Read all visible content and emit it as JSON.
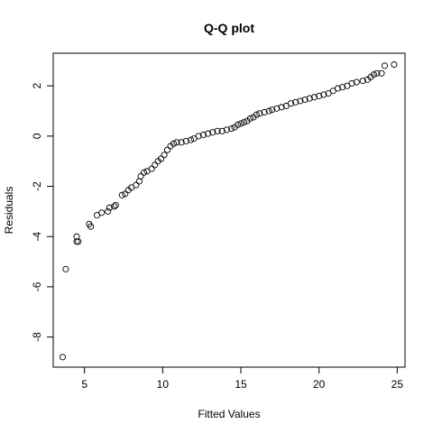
{
  "chart_data": {
    "type": "scatter",
    "title": "Q-Q plot",
    "xlabel": "Fitted Values",
    "ylabel": "Residuals",
    "xlim": [
      3.0,
      25.5
    ],
    "ylim": [
      -9.2,
      3.3
    ],
    "xticks": [
      5,
      10,
      15,
      20,
      25
    ],
    "yticks": [
      -8,
      -6,
      -4,
      -2,
      0,
      2
    ],
    "xtick_labels": [
      "5",
      "10",
      "15",
      "20",
      "25"
    ],
    "ytick_labels": [
      "-8",
      "-6",
      "-4",
      "-2",
      "0",
      "2"
    ],
    "points": [
      [
        3.6,
        -8.8
      ],
      [
        3.8,
        -5.3
      ],
      [
        4.5,
        -4.0
      ],
      [
        4.5,
        -4.2
      ],
      [
        4.6,
        -4.2
      ],
      [
        5.3,
        -3.5
      ],
      [
        5.4,
        -3.6
      ],
      [
        5.8,
        -3.15
      ],
      [
        6.1,
        -3.05
      ],
      [
        6.5,
        -3.0
      ],
      [
        6.6,
        -2.85
      ],
      [
        6.9,
        -2.8
      ],
      [
        7.0,
        -2.75
      ],
      [
        7.4,
        -2.35
      ],
      [
        7.6,
        -2.3
      ],
      [
        7.8,
        -2.15
      ],
      [
        8.0,
        -2.05
      ],
      [
        8.3,
        -1.95
      ],
      [
        8.5,
        -1.8
      ],
      [
        8.6,
        -1.6
      ],
      [
        8.8,
        -1.45
      ],
      [
        9.0,
        -1.4
      ],
      [
        9.3,
        -1.3
      ],
      [
        9.5,
        -1.15
      ],
      [
        9.7,
        -1.0
      ],
      [
        9.9,
        -0.9
      ],
      [
        10.1,
        -0.75
      ],
      [
        10.3,
        -0.55
      ],
      [
        10.5,
        -0.4
      ],
      [
        10.7,
        -0.3
      ],
      [
        10.9,
        -0.25
      ],
      [
        11.2,
        -0.25
      ],
      [
        11.5,
        -0.2
      ],
      [
        11.8,
        -0.15
      ],
      [
        12.0,
        -0.1
      ],
      [
        12.3,
        0.0
      ],
      [
        12.6,
        0.05
      ],
      [
        12.9,
        0.1
      ],
      [
        13.2,
        0.15
      ],
      [
        13.5,
        0.2
      ],
      [
        13.8,
        0.2
      ],
      [
        14.1,
        0.25
      ],
      [
        14.4,
        0.3
      ],
      [
        14.6,
        0.35
      ],
      [
        14.8,
        0.45
      ],
      [
        15.0,
        0.5
      ],
      [
        15.2,
        0.55
      ],
      [
        15.4,
        0.6
      ],
      [
        15.6,
        0.7
      ],
      [
        15.8,
        0.75
      ],
      [
        16.0,
        0.85
      ],
      [
        16.2,
        0.9
      ],
      [
        16.5,
        0.95
      ],
      [
        16.8,
        1.0
      ],
      [
        17.0,
        1.05
      ],
      [
        17.3,
        1.1
      ],
      [
        17.6,
        1.15
      ],
      [
        17.9,
        1.2
      ],
      [
        18.2,
        1.3
      ],
      [
        18.5,
        1.35
      ],
      [
        18.8,
        1.4
      ],
      [
        19.1,
        1.45
      ],
      [
        19.4,
        1.5
      ],
      [
        19.7,
        1.55
      ],
      [
        20.0,
        1.6
      ],
      [
        20.3,
        1.65
      ],
      [
        20.6,
        1.7
      ],
      [
        20.9,
        1.8
      ],
      [
        21.2,
        1.9
      ],
      [
        21.5,
        1.95
      ],
      [
        21.8,
        2.0
      ],
      [
        22.1,
        2.1
      ],
      [
        22.4,
        2.15
      ],
      [
        22.8,
        2.2
      ],
      [
        23.1,
        2.25
      ],
      [
        23.3,
        2.35
      ],
      [
        23.5,
        2.45
      ],
      [
        23.7,
        2.5
      ],
      [
        24.0,
        2.5
      ],
      [
        24.2,
        2.8
      ],
      [
        24.8,
        2.85
      ]
    ]
  }
}
